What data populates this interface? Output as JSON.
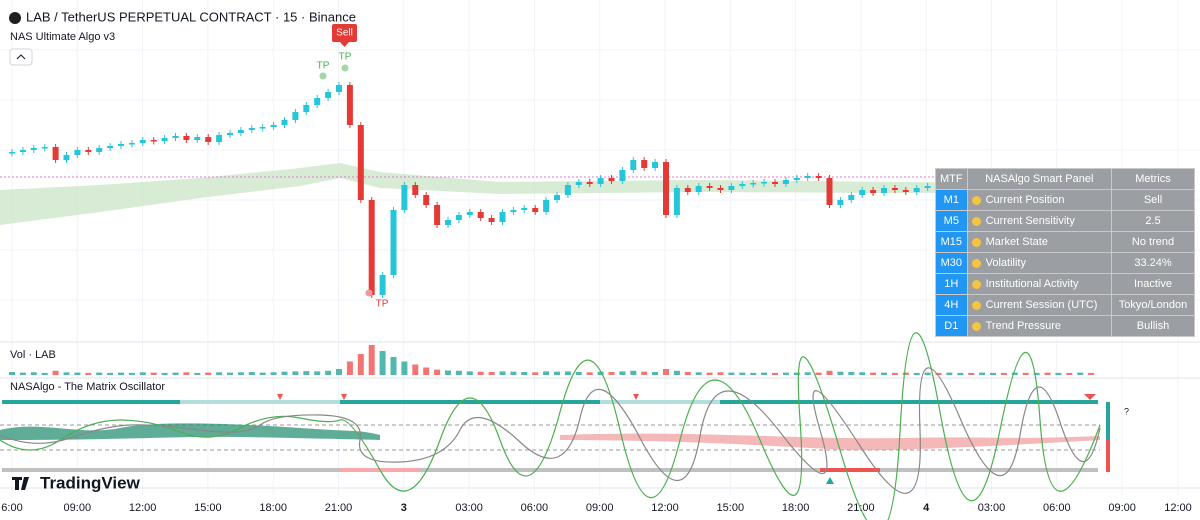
{
  "header": {
    "title": "LAB / TetherUS PERPETUAL CONTRACT · 15 · Binance",
    "indicator": "NAS Ultimate Algo v3"
  },
  "labels": {
    "sell": "Sell",
    "tp1": "TP",
    "tp2": "TP",
    "tp3": "TP",
    "volume": "Vol · LAB",
    "oscillator": "NASAlgo - The Matrix Oscillator",
    "help": "?",
    "brand": "TradingView"
  },
  "table": {
    "header": [
      "MTF",
      "NASAlgo Smart Panel",
      "Metrics"
    ],
    "rows": [
      [
        "M1",
        "Current Position",
        "Sell"
      ],
      [
        "M5",
        "Current Sensitivity",
        "2.5"
      ],
      [
        "M15",
        "Market State",
        "No trend"
      ],
      [
        "M30",
        "Volatility",
        "33.24%"
      ],
      [
        "1H",
        "Institutional Activity",
        "Inactive"
      ],
      [
        "4H",
        "Current Session (UTC)",
        "Tokyo/London"
      ],
      [
        "D1",
        "Trend Pressure",
        "Bullish"
      ]
    ]
  },
  "time_axis": [
    "6:00",
    "09:00",
    "12:00",
    "15:00",
    "18:00",
    "21:00",
    "3",
    "03:00",
    "06:00",
    "09:00",
    "12:00",
    "15:00",
    "18:00",
    "21:00",
    "4",
    "03:00",
    "06:00",
    "09:00",
    "12:00"
  ],
  "candles": [
    248,
    250,
    252,
    253,
    240,
    245,
    250,
    248,
    252,
    254,
    256,
    257,
    260,
    259,
    262,
    264,
    260,
    263,
    258,
    265,
    267,
    270,
    272,
    273,
    275,
    280,
    288,
    295,
    302,
    308,
    315,
    275,
    200,
    105,
    125,
    190,
    215,
    205,
    195,
    175,
    180,
    185,
    188,
    182,
    178,
    188,
    190,
    192,
    188,
    200,
    205,
    215,
    218,
    216,
    222,
    219,
    230,
    240,
    232,
    238,
    185,
    212,
    208,
    214,
    212,
    210,
    214,
    216,
    217,
    218,
    216,
    220,
    222,
    224,
    222,
    195,
    200,
    205,
    210,
    207,
    212,
    210,
    208,
    212,
    214,
    210,
    214,
    216,
    214,
    217,
    218,
    216,
    219,
    217,
    220,
    219,
    221,
    220,
    222,
    221
  ],
  "volume": [
    10,
    8,
    9,
    7,
    14,
    9,
    8,
    7,
    8,
    7,
    8,
    7,
    9,
    8,
    7,
    8,
    9,
    7,
    8,
    9,
    8,
    9,
    10,
    8,
    9,
    11,
    12,
    13,
    12,
    14,
    20,
    45,
    70,
    100,
    80,
    60,
    45,
    35,
    25,
    18,
    15,
    14,
    12,
    11,
    10,
    12,
    11,
    10,
    9,
    12,
    11,
    12,
    10,
    9,
    11,
    10,
    12,
    14,
    11,
    10,
    20,
    14,
    10,
    9,
    8,
    9,
    8,
    8,
    7,
    8,
    7,
    8,
    8,
    9,
    8,
    14,
    11,
    10,
    9,
    8,
    8,
    7,
    8,
    7,
    8,
    7,
    8,
    7,
    7,
    8,
    7,
    7,
    8,
    7,
    7,
    8,
    7,
    7,
    8,
    7
  ]
}
